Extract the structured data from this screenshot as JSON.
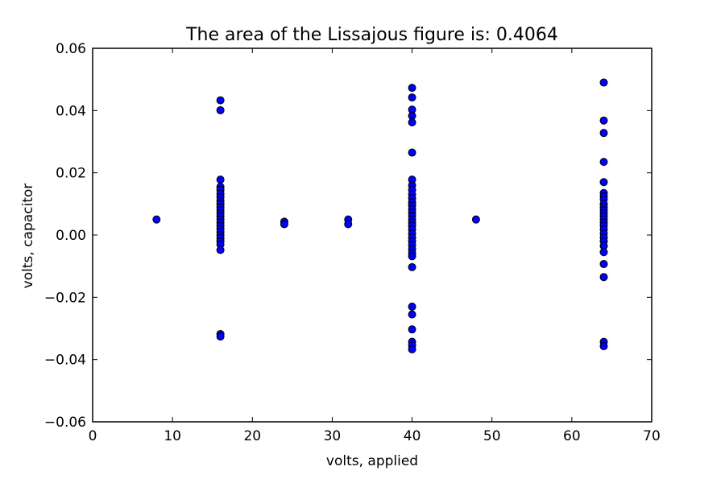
{
  "chart_data": {
    "type": "scatter",
    "title": "The area of the Lissajous figure is: 0.4064",
    "xlabel": "volts, applied",
    "ylabel": "volts, capacitor",
    "xlim": [
      0,
      70
    ],
    "ylim": [
      -0.06,
      0.06
    ],
    "xticks": [
      0,
      10,
      20,
      30,
      40,
      50,
      60,
      70
    ],
    "yticks": [
      -0.06,
      -0.04,
      -0.02,
      0.0,
      0.02,
      0.04,
      0.06
    ],
    "xtick_labels": [
      "0",
      "10",
      "20",
      "30",
      "40",
      "50",
      "60",
      "70"
    ],
    "ytick_labels": [
      "−0.06",
      "−0.04",
      "−0.02",
      "0.00",
      "0.02",
      "0.04",
      "0.06"
    ],
    "grid": false,
    "marker_color": "#0000ff",
    "marker_edge": "#000000",
    "points": [
      [
        8,
        0.005
      ],
      [
        16,
        0.0433
      ],
      [
        16,
        0.0401
      ],
      [
        16,
        0.0178
      ],
      [
        16,
        0.0155
      ],
      [
        16,
        0.0145
      ],
      [
        16,
        0.0133
      ],
      [
        16,
        0.0122
      ],
      [
        16,
        0.011
      ],
      [
        16,
        0.01
      ],
      [
        16,
        0.009
      ],
      [
        16,
        0.008
      ],
      [
        16,
        0.007
      ],
      [
        16,
        0.006
      ],
      [
        16,
        0.005
      ],
      [
        16,
        0.004
      ],
      [
        16,
        0.003
      ],
      [
        16,
        0.002
      ],
      [
        16,
        0.001
      ],
      [
        16,
        0.0
      ],
      [
        16,
        -0.001
      ],
      [
        16,
        -0.002
      ],
      [
        16,
        -0.003
      ],
      [
        16,
        -0.0048
      ],
      [
        16,
        -0.0318
      ],
      [
        16,
        -0.0326
      ],
      [
        24,
        0.0043
      ],
      [
        24,
        0.0035
      ],
      [
        32,
        0.005
      ],
      [
        32,
        0.0035
      ],
      [
        48,
        0.005
      ],
      [
        40,
        0.0473
      ],
      [
        40,
        0.0442
      ],
      [
        40,
        0.0403
      ],
      [
        40,
        0.0383
      ],
      [
        40,
        0.0362
      ],
      [
        40,
        0.0265
      ],
      [
        40,
        0.0178
      ],
      [
        40,
        0.016
      ],
      [
        40,
        0.0145
      ],
      [
        40,
        0.013
      ],
      [
        40,
        0.0118
      ],
      [
        40,
        0.0105
      ],
      [
        40,
        0.0095
      ],
      [
        40,
        0.0083
      ],
      [
        40,
        0.0072
      ],
      [
        40,
        0.0062
      ],
      [
        40,
        0.005
      ],
      [
        40,
        0.004
      ],
      [
        40,
        0.003
      ],
      [
        40,
        0.0018
      ],
      [
        40,
        0.0005
      ],
      [
        40,
        -0.0008
      ],
      [
        40,
        -0.002
      ],
      [
        40,
        -0.0032
      ],
      [
        40,
        -0.0045
      ],
      [
        40,
        -0.0058
      ],
      [
        40,
        -0.0068
      ],
      [
        40,
        -0.0103
      ],
      [
        40,
        -0.023
      ],
      [
        40,
        -0.0255
      ],
      [
        40,
        -0.0303
      ],
      [
        40,
        -0.0343
      ],
      [
        40,
        -0.0355
      ],
      [
        40,
        -0.0367
      ],
      [
        64,
        0.049
      ],
      [
        64,
        0.0368
      ],
      [
        64,
        0.0328
      ],
      [
        64,
        0.0235
      ],
      [
        64,
        0.017
      ],
      [
        64,
        0.0135
      ],
      [
        64,
        0.0125
      ],
      [
        64,
        0.0115
      ],
      [
        64,
        0.01
      ],
      [
        64,
        0.009
      ],
      [
        64,
        0.008
      ],
      [
        64,
        0.007
      ],
      [
        64,
        0.006
      ],
      [
        64,
        0.005
      ],
      [
        64,
        0.004
      ],
      [
        64,
        0.003
      ],
      [
        64,
        0.0018
      ],
      [
        64,
        0.0005
      ],
      [
        64,
        -0.0008
      ],
      [
        64,
        -0.002
      ],
      [
        64,
        -0.0035
      ],
      [
        64,
        -0.0055
      ],
      [
        64,
        -0.0093
      ],
      [
        64,
        -0.0135
      ],
      [
        64,
        -0.0343
      ],
      [
        64,
        -0.0357
      ]
    ]
  }
}
